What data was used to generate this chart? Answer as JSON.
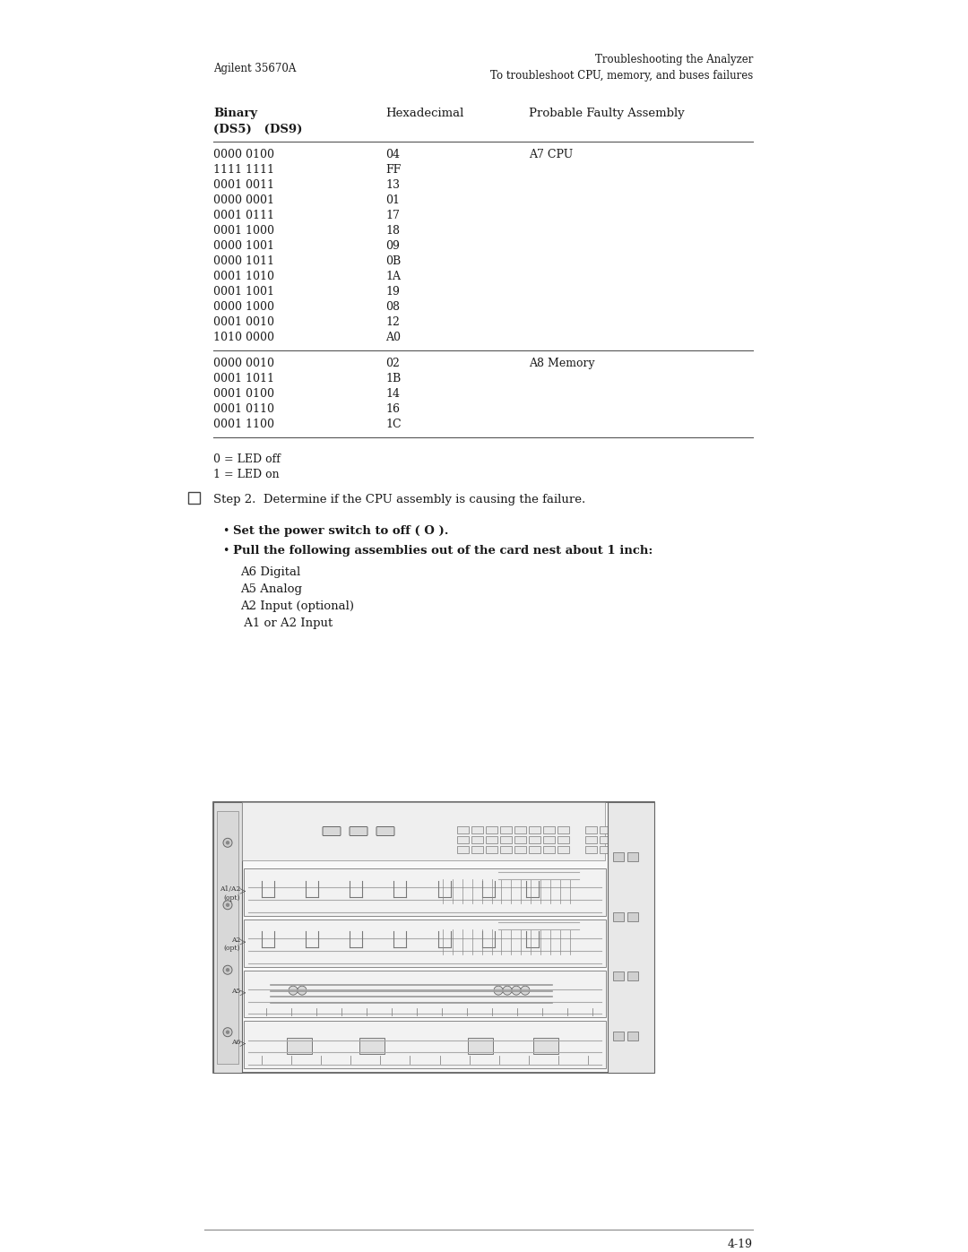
{
  "header_left": "Agilent 35670A",
  "header_right_line1": "Troubleshooting the Analyzer",
  "header_right_line2": "To troubleshoot CPU, memory, and buses failures",
  "section1_rows": [
    [
      "0000 0100",
      "04",
      "A7 CPU"
    ],
    [
      "1111 1111",
      "FF",
      ""
    ],
    [
      "0001 0011",
      "13",
      ""
    ],
    [
      "0000 0001",
      "01",
      ""
    ],
    [
      "0001 0111",
      "17",
      ""
    ],
    [
      "0001 1000",
      "18",
      ""
    ],
    [
      "0000 1001",
      "09",
      ""
    ],
    [
      "0000 1011",
      "0B",
      ""
    ],
    [
      "0001 1010",
      "1A",
      ""
    ],
    [
      "0001 1001",
      "19",
      ""
    ],
    [
      "0000 1000",
      "08",
      ""
    ],
    [
      "0001 0010",
      "12",
      ""
    ],
    [
      "1010 0000",
      "A0",
      ""
    ]
  ],
  "section2_rows": [
    [
      "0000 0010",
      "02",
      "A8 Memory"
    ],
    [
      "0001 1011",
      "1B",
      ""
    ],
    [
      "0001 0100",
      "14",
      ""
    ],
    [
      "0001 0110",
      "16",
      ""
    ],
    [
      "0001 1100",
      "1C",
      ""
    ]
  ],
  "legend_lines": [
    "0 = LED off",
    "1 = LED on"
  ],
  "step2_text": "Step 2.  Determine if the CPU assembly is causing the failure.",
  "bullet1_bold": "Set the power switch to off ( O ).",
  "bullet2_bold": "Pull the following assemblies out of the card nest about 1 inch:",
  "assembly_list": [
    "A6 Digital",
    "A5 Analog",
    "A2 Input (optional)",
    " A1 or A2 Input"
  ],
  "page_number": "4-19",
  "bg_color": "#ffffff",
  "text_color": "#1a1a1a",
  "line_color": "#555555",
  "draw_color": "#888888"
}
